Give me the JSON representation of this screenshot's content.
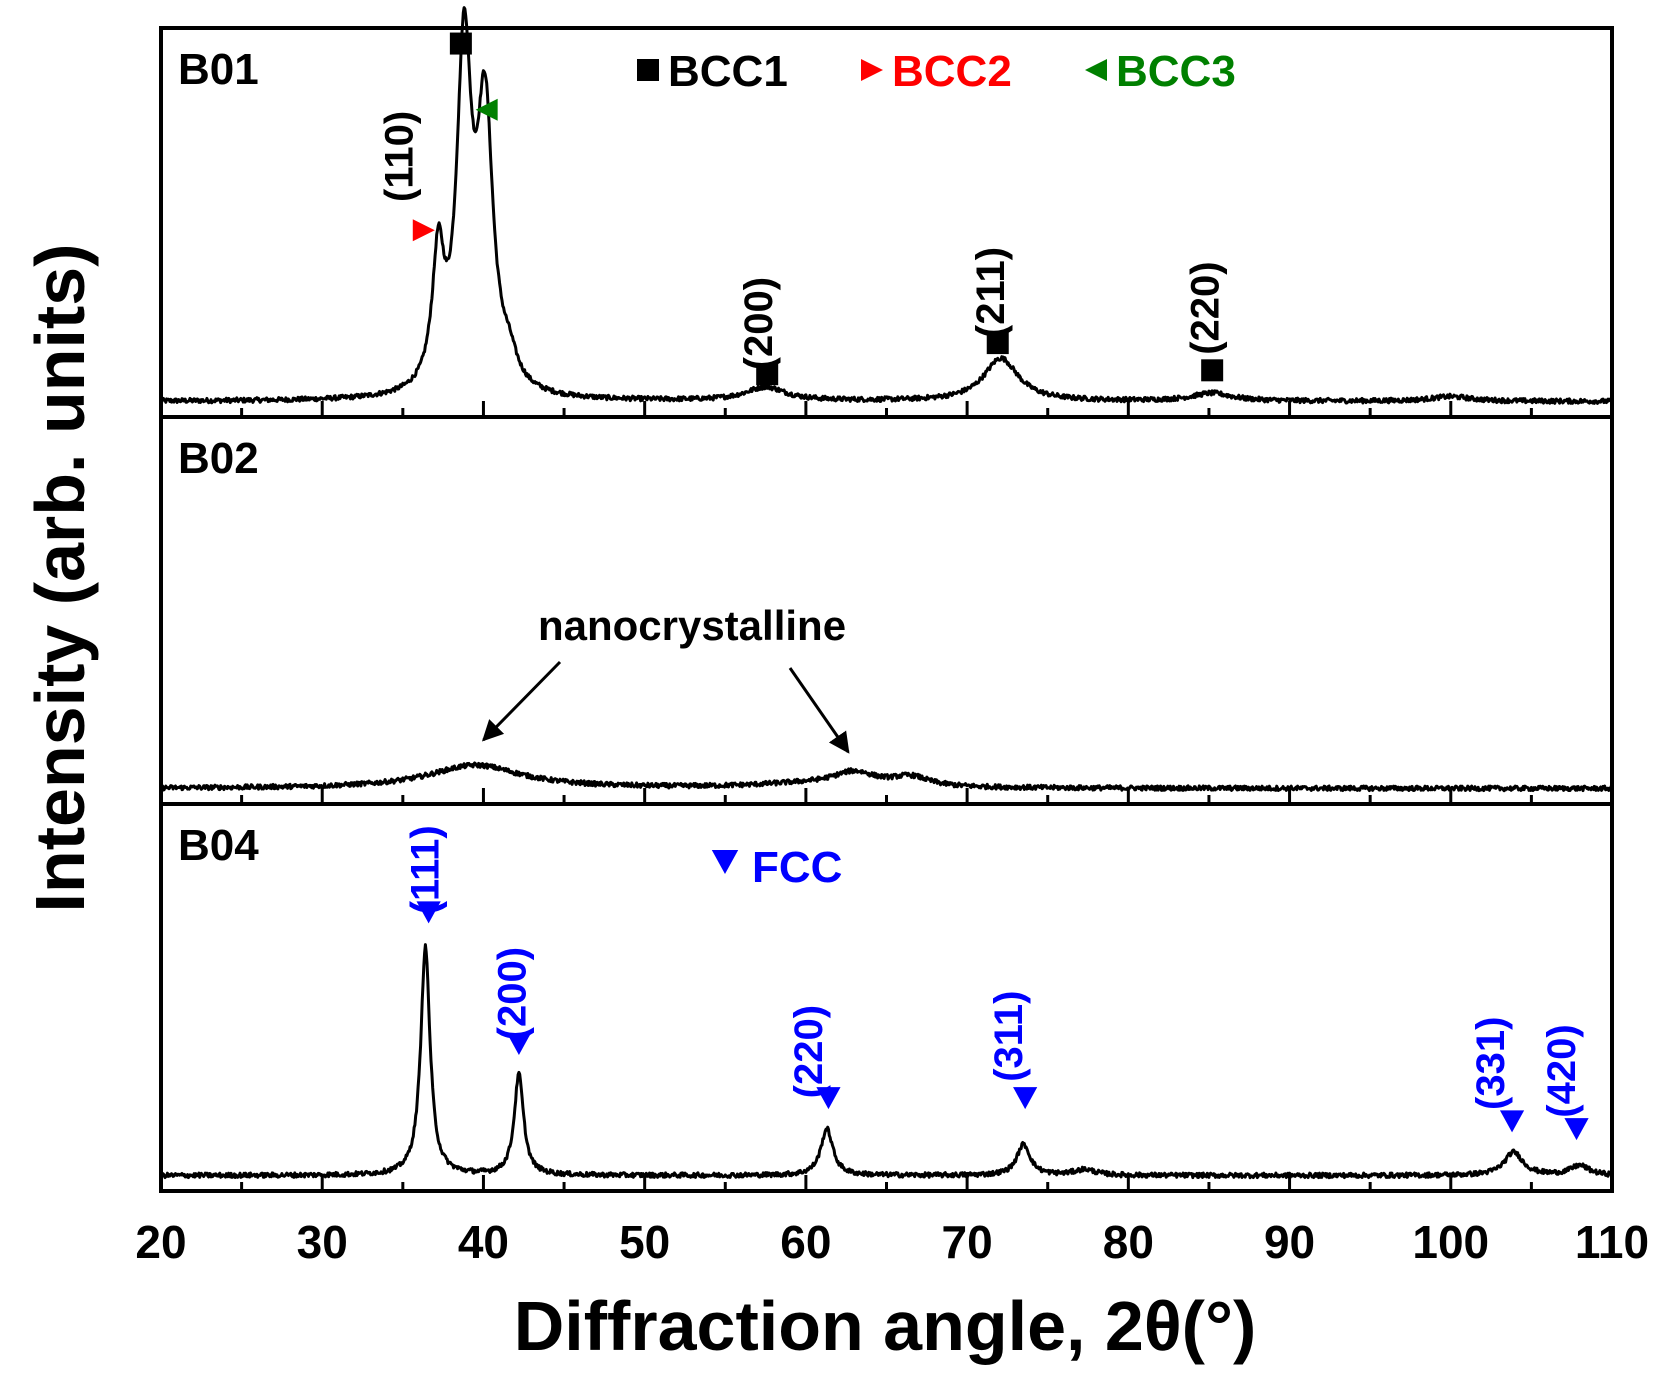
{
  "chart_data": {
    "type": "line",
    "xlabel": "Diffraction angle, 2θ(°)",
    "ylabel": "Intensity (arb. units)",
    "xlim": [
      20,
      110
    ],
    "xticks": [
      "20",
      "30",
      "40",
      "50",
      "60",
      "70",
      "80",
      "90",
      "100",
      "110"
    ],
    "colors": {
      "bcc1": "#000000",
      "bcc2": "#ff0000",
      "bcc3": "#008000",
      "fcc": "#0000ff",
      "line": "#000000"
    },
    "panels": [
      {
        "label": "B01",
        "baseline": 0.04,
        "legend": [
          {
            "symbol": "square",
            "text": "BCC1",
            "color": "#000000"
          },
          {
            "symbol": "triangle-right",
            "text": "BCC2",
            "color": "#ff0000"
          },
          {
            "symbol": "triangle-left",
            "text": "BCC3",
            "color": "#008000"
          }
        ],
        "peaks": [
          {
            "center": 37.2,
            "height": 0.33,
            "width": 0.45
          },
          {
            "center": 38.8,
            "height": 0.86,
            "width": 0.55
          },
          {
            "center": 40.1,
            "height": 0.7,
            "width": 0.6
          },
          {
            "center": 41.6,
            "height": 0.06,
            "width": 0.6
          },
          {
            "center": 57.5,
            "height": 0.035,
            "width": 1.5
          },
          {
            "center": 72.1,
            "height": 0.11,
            "width": 1.3
          },
          {
            "center": 85.2,
            "height": 0.02,
            "width": 1.5
          },
          {
            "center": 100.0,
            "height": 0.012,
            "width": 1.5
          }
        ],
        "markers": [
          {
            "x": 38.6,
            "y": 0.96,
            "symbol": "square",
            "color": "#000000"
          },
          {
            "x": 36.3,
            "y": 0.48,
            "symbol": "triangle-right",
            "color": "#ff0000"
          },
          {
            "x": 40.2,
            "y": 0.79,
            "symbol": "triangle-left",
            "color": "#008000"
          },
          {
            "x": 57.6,
            "y": 0.11,
            "symbol": "square",
            "color": "#000000"
          },
          {
            "x": 71.9,
            "y": 0.19,
            "symbol": "square",
            "color": "#000000"
          },
          {
            "x": 85.2,
            "y": 0.12,
            "symbol": "square",
            "color": "#000000"
          }
        ],
        "hkl": [
          {
            "text": "(110)",
            "x": 35.6,
            "y": 0.67,
            "color": "#000000"
          },
          {
            "text": "(200)",
            "x": 57.9,
            "y": 0.24,
            "color": "#000000"
          },
          {
            "text": "(211)",
            "x": 72.3,
            "y": 0.32,
            "color": "#000000"
          },
          {
            "text": "(220)",
            "x": 85.6,
            "y": 0.28,
            "color": "#000000"
          }
        ]
      },
      {
        "label": "B02",
        "baseline": 0.04,
        "annotation": "nanocrystalline",
        "annotation_targets": [
          40,
          63
        ],
        "peaks": [
          {
            "center": 39.5,
            "height": 0.06,
            "width": 3.5
          },
          {
            "center": 63.0,
            "height": 0.035,
            "width": 1.6
          },
          {
            "center": 66.5,
            "height": 0.025,
            "width": 1.4
          },
          {
            "center": 60.0,
            "height": 0.01,
            "width": 4.0
          }
        ]
      },
      {
        "label": "B04",
        "baseline": 0.04,
        "legend": [
          {
            "symbol": "triangle-down",
            "text": "FCC",
            "color": "#0000ff"
          }
        ],
        "peaks": [
          {
            "center": 36.4,
            "height": 0.59,
            "width": 0.35
          },
          {
            "center": 42.2,
            "height": 0.26,
            "width": 0.35
          },
          {
            "center": 61.3,
            "height": 0.12,
            "width": 0.45
          },
          {
            "center": 73.5,
            "height": 0.08,
            "width": 0.5
          },
          {
            "center": 77.3,
            "height": 0.015,
            "width": 0.8
          },
          {
            "center": 103.9,
            "height": 0.06,
            "width": 0.7
          },
          {
            "center": 108.0,
            "height": 0.025,
            "width": 0.7
          }
        ],
        "markers": [
          {
            "x": 36.6,
            "y": 0.72,
            "symbol": "triangle-down",
            "color": "#0000ff"
          },
          {
            "x": 42.2,
            "y": 0.38,
            "symbol": "triangle-down",
            "color": "#0000ff"
          },
          {
            "x": 61.4,
            "y": 0.24,
            "symbol": "triangle-down",
            "color": "#0000ff"
          },
          {
            "x": 73.6,
            "y": 0.24,
            "symbol": "triangle-down",
            "color": "#0000ff"
          },
          {
            "x": 103.8,
            "y": 0.18,
            "symbol": "triangle-down",
            "color": "#0000ff"
          },
          {
            "x": 107.8,
            "y": 0.16,
            "symbol": "triangle-down",
            "color": "#0000ff"
          }
        ],
        "hkl": [
          {
            "text": "(111)",
            "x": 37.2,
            "y": 0.83,
            "color": "#0000ff"
          },
          {
            "text": "(200)",
            "x": 42.6,
            "y": 0.51,
            "color": "#0000ff"
          },
          {
            "text": "(220)",
            "x": 61.0,
            "y": 0.36,
            "color": "#0000ff"
          },
          {
            "text": "(311)",
            "x": 73.4,
            "y": 0.4,
            "color": "#0000ff"
          },
          {
            "text": "(331)",
            "x": 103.3,
            "y": 0.33,
            "color": "#0000ff"
          },
          {
            "text": "(420)",
            "x": 107.7,
            "y": 0.31,
            "color": "#0000ff"
          }
        ]
      }
    ]
  }
}
